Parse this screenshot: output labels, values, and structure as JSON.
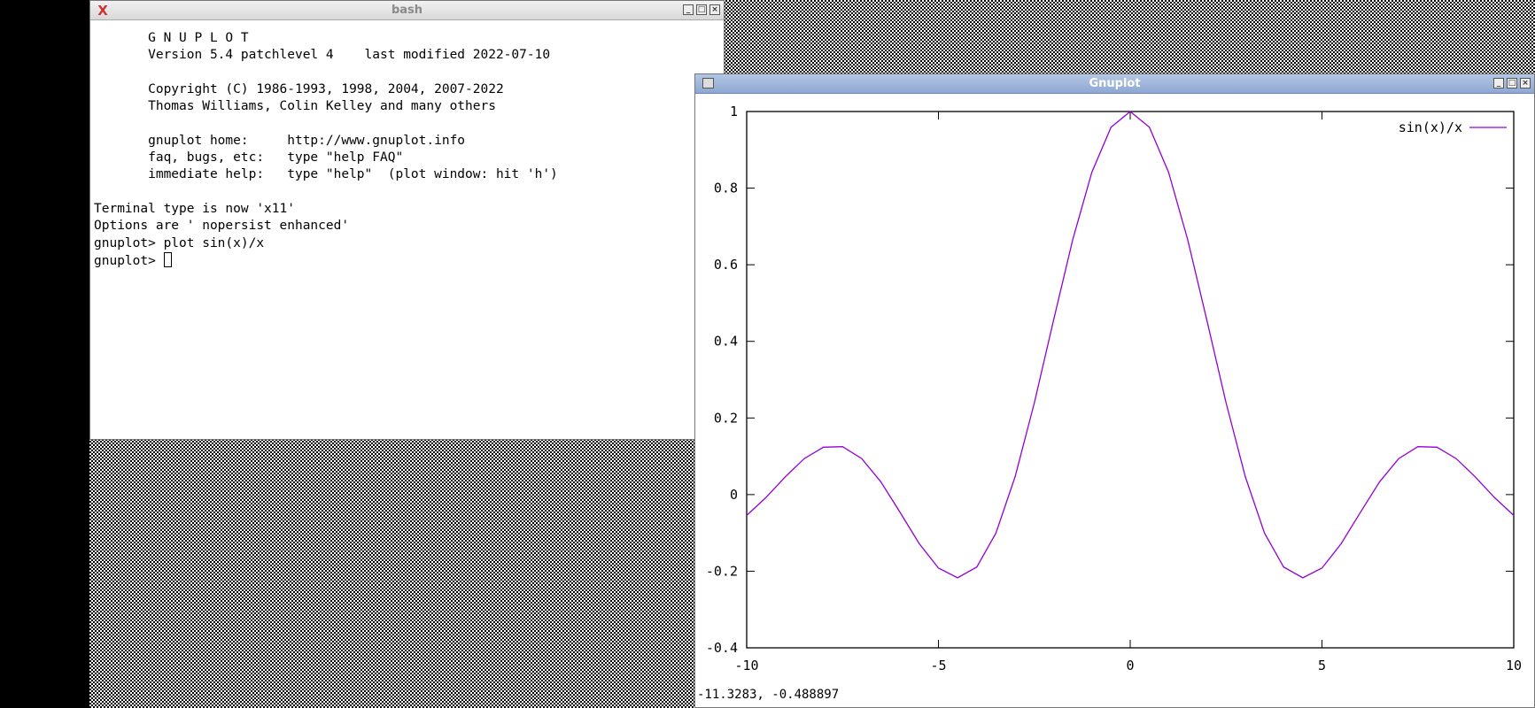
{
  "desktop": {
    "background": "checker"
  },
  "terminal_window": {
    "title": "bash",
    "lines": [
      "       G N U P L O T",
      "       Version 5.4 patchlevel 4    last modified 2022-07-10",
      "",
      "       Copyright (C) 1986-1993, 1998, 2004, 2007-2022",
      "       Thomas Williams, Colin Kelley and many others",
      "",
      "       gnuplot home:     http://www.gnuplot.info",
      "       faq, bugs, etc:   type \"help FAQ\"",
      "       immediate help:   type \"help\"  (plot window: hit 'h')",
      "",
      "Terminal type is now 'x11'",
      "Options are ' nopersist enhanced'",
      "gnuplot> plot sin(x)/x",
      "gnuplot> "
    ]
  },
  "plot_window": {
    "title": "Gnuplot",
    "status": "-11.3283, -0.488897"
  },
  "chart_data": {
    "type": "line",
    "function": "sin(x)/x",
    "xlim": [
      -10,
      10
    ],
    "ylim": [
      -0.4,
      1
    ],
    "xticks": [
      "-10",
      "-5",
      "0",
      "5",
      "10"
    ],
    "yticks": [
      "-0.4",
      "-0.2",
      "0",
      "0.2",
      "0.4",
      "0.6",
      "0.8",
      "1"
    ],
    "grid": false,
    "legend": "top-right",
    "series": [
      {
        "name": "sin(x)/x",
        "color": "#9400d3",
        "x": [
          -10,
          -9.5,
          -9,
          -8.5,
          -8,
          -7.5,
          -7,
          -6.5,
          -6,
          -5.5,
          -5,
          -4.5,
          -4,
          -3.5,
          -3,
          -2.5,
          -2,
          -1.5,
          -1,
          -0.5,
          0,
          0.5,
          1,
          1.5,
          2,
          2.5,
          3,
          3.5,
          4,
          4.5,
          5,
          5.5,
          6,
          6.5,
          7,
          7.5,
          8,
          8.5,
          9,
          9.5,
          10
        ],
        "y": [
          -0.0544,
          -0.0079,
          0.0458,
          0.0939,
          0.1237,
          0.1251,
          0.0939,
          0.0331,
          -0.0466,
          -0.1283,
          -0.1918,
          -0.2172,
          -0.1892,
          -0.1002,
          0.047,
          0.2394,
          0.4546,
          0.665,
          0.8415,
          0.9589,
          1,
          0.9589,
          0.8415,
          0.665,
          0.4546,
          0.2394,
          0.047,
          -0.1002,
          -0.1892,
          -0.2172,
          -0.1918,
          -0.1283,
          -0.0466,
          0.0331,
          0.0939,
          0.1251,
          0.1237,
          0.0939,
          0.0458,
          -0.0079,
          -0.0544
        ]
      }
    ]
  }
}
